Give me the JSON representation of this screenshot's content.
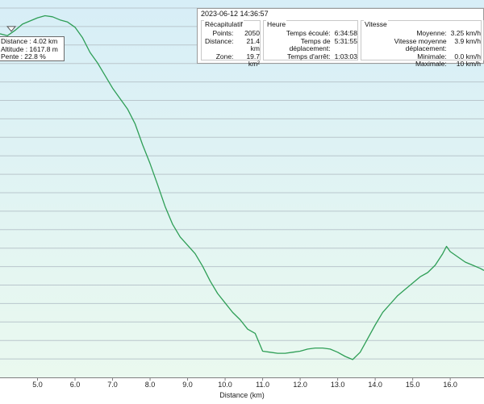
{
  "chart_data": {
    "type": "area",
    "xlabel": "Distance (km)",
    "ylabel": "",
    "xlim": [
      4.0,
      16.9
    ],
    "ticks": [
      "5.0",
      "6.0",
      "7.0",
      "8.0",
      "9.0",
      "10.0",
      "11.0",
      "12.0",
      "13.0",
      "14.0",
      "15.0",
      "16.0"
    ],
    "grid": true,
    "x": [
      4.0,
      4.2,
      4.4,
      4.6,
      4.8,
      5.0,
      5.2,
      5.4,
      5.6,
      5.8,
      6.0,
      6.2,
      6.4,
      6.6,
      6.8,
      7.0,
      7.2,
      7.4,
      7.6,
      7.8,
      8.0,
      8.2,
      8.4,
      8.6,
      8.8,
      9.0,
      9.2,
      9.4,
      9.6,
      9.8,
      10.0,
      10.2,
      10.4,
      10.6,
      10.8,
      11.0,
      11.2,
      11.4,
      11.6,
      11.8,
      12.0,
      12.2,
      12.4,
      12.6,
      12.8,
      13.0,
      13.2,
      13.4,
      13.6,
      13.8,
      14.0,
      14.2,
      14.4,
      14.6,
      14.8,
      15.0,
      15.2,
      15.4,
      15.6,
      15.8,
      15.9,
      16.0,
      16.2,
      16.4,
      16.6,
      16.8,
      16.9
    ],
    "y": [
      1617.8,
      1616.0,
      1621.0,
      1627.0,
      1630.0,
      1633.0,
      1635.0,
      1634.0,
      1631.0,
      1629.0,
      1624.0,
      1614.0,
      1600.0,
      1590.0,
      1578.0,
      1566.0,
      1556.0,
      1546.0,
      1532.0,
      1512.0,
      1494.0,
      1474.0,
      1453.0,
      1436.0,
      1424.0,
      1416.0,
      1408.0,
      1396.0,
      1382.0,
      1370.0,
      1361.0,
      1352.0,
      1345.0,
      1336.0,
      1332.0,
      1315.0,
      1314.0,
      1313.0,
      1313.0,
      1314.0,
      1315.0,
      1317.0,
      1318.0,
      1318.0,
      1317.0,
      1314.0,
      1310.0,
      1307.0,
      1314.0,
      1327.0,
      1340.0,
      1352.0,
      1360.0,
      1368.0,
      1374.0,
      1380.0,
      1386.0,
      1390.0,
      1397.0,
      1408.0,
      1415.0,
      1410.0,
      1405.0,
      1400.0,
      1397.0,
      1394.0,
      1392.0
    ],
    "ylim": [
      1290,
      1650
    ],
    "line_color": "#2e9e56",
    "area_top_color": "#d7eef7",
    "area_bottom_color": "#eaf9ef"
  },
  "summary": {
    "timestamp": "2023-06-12 14:36:57",
    "recap": {
      "title": "Récapitulatif",
      "rows": [
        {
          "k": "Points:",
          "v": "2050"
        },
        {
          "k": "Distance:",
          "v": "21.4 km"
        },
        {
          "k": "Zone:",
          "v": "19.7 km²"
        }
      ]
    },
    "heure": {
      "title": "Heure",
      "rows": [
        {
          "k": "Temps écoulé:",
          "v": "6:34:58"
        },
        {
          "k": "Temps de déplacement:",
          "v": "5:31:55"
        },
        {
          "k": "Temps d'arrêt:",
          "v": "1:03:03"
        }
      ]
    },
    "vitesse": {
      "title": "Vitesse",
      "rows": [
        {
          "k": "Moyenne:",
          "v": "3.25 km/h"
        },
        {
          "k": "Vitesse moyenne déplacement:",
          "v": "3.9 km/h"
        },
        {
          "k": "Minimale:",
          "v": "0.0 km/h"
        },
        {
          "k": "Maximale:",
          "v": "10 km/h"
        }
      ]
    }
  },
  "tooltip": {
    "distance": "Distance : 4.02 km",
    "altitude": "Altitude : 1617.8 m",
    "pente": "Pente : 22.8 %"
  }
}
